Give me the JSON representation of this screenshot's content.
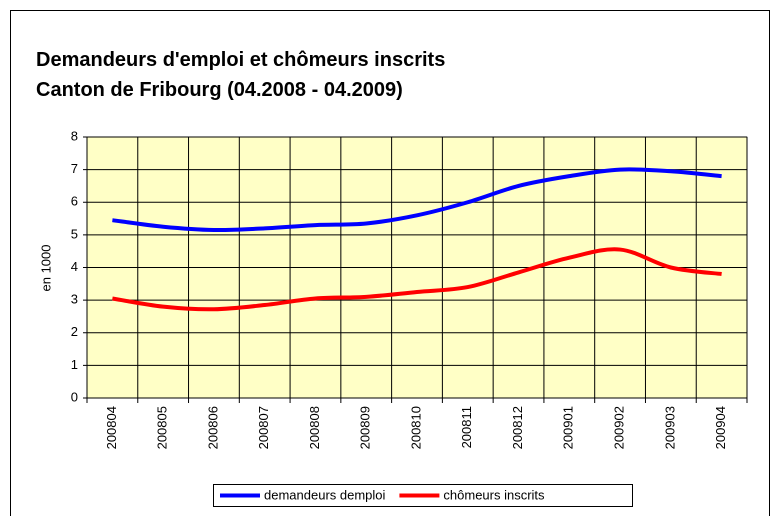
{
  "chart_data": {
    "type": "line",
    "title": "Demandeurs d'emploi et chômeurs inscrits",
    "subtitle": "Canton de Fribourg (04.2008 - 04.2009)",
    "y_label": "en 1000",
    "categories": [
      "200804",
      "200805",
      "200806",
      "200807",
      "200808",
      "200809",
      "200810",
      "200811",
      "200812",
      "200901",
      "200902",
      "200903",
      "200904"
    ],
    "series": [
      {
        "name": "demandeurs demploi",
        "color": "#0000ff",
        "values": [
          5.45,
          5.25,
          5.15,
          5.2,
          5.3,
          5.35,
          5.6,
          6.0,
          6.5,
          6.8,
          7.0,
          6.95,
          6.8
        ]
      },
      {
        "name": "chômeurs inscrits",
        "color": "#ff0000",
        "values": [
          3.05,
          2.8,
          2.72,
          2.85,
          3.05,
          3.1,
          3.25,
          3.4,
          3.85,
          4.3,
          4.55,
          4.0,
          3.8
        ]
      }
    ],
    "ylim": [
      0,
      8
    ],
    "yticks": [
      0,
      1,
      2,
      3,
      4,
      5,
      6,
      7,
      8
    ],
    "grid": true,
    "smooth": true,
    "legend": "bottom",
    "plot_background": "#ffffc6"
  }
}
